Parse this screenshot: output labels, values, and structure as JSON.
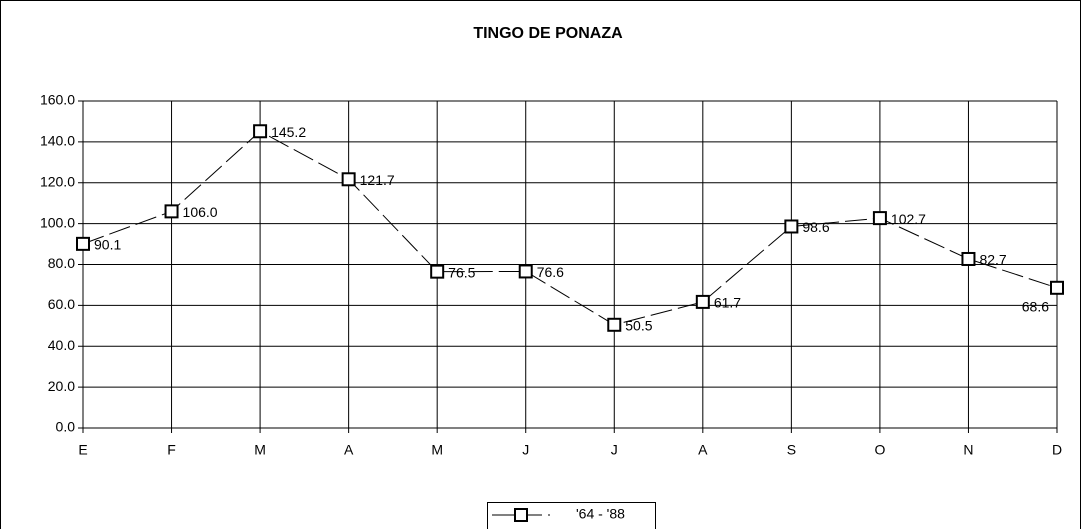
{
  "chart_data": {
    "type": "line",
    "title": "TINGO DE PONAZA",
    "categories": [
      "E",
      "F",
      "M",
      "A",
      "M",
      "J",
      "J",
      "A",
      "S",
      "O",
      "N",
      "D"
    ],
    "series": [
      {
        "name": "'64 - '88",
        "color": "#000000",
        "values": [
          90.1,
          106.0,
          145.2,
          121.7,
          76.5,
          76.6,
          50.5,
          61.7,
          98.6,
          102.7,
          82.7,
          68.6
        ],
        "value_labels": [
          "90.1",
          "106.0",
          "145.2",
          "121.7",
          "76.5",
          "76.6",
          "50.5",
          "61.7",
          "98.6",
          "102.7",
          "82.7",
          "68.6"
        ]
      }
    ],
    "ylim": [
      0,
      160
    ],
    "yticks": [
      {
        "value": 0,
        "label": "0.0"
      },
      {
        "value": 20,
        "label": "20.0"
      },
      {
        "value": 40,
        "label": "40.0"
      },
      {
        "value": 60,
        "label": "60.0"
      },
      {
        "value": 80,
        "label": "80.0"
      },
      {
        "value": 100,
        "label": "100.0"
      },
      {
        "value": 120,
        "label": "120.0"
      },
      {
        "value": 140,
        "label": "140.0"
      },
      {
        "value": 160,
        "label": "160.0"
      }
    ],
    "grid": true,
    "legend": "bottom"
  }
}
